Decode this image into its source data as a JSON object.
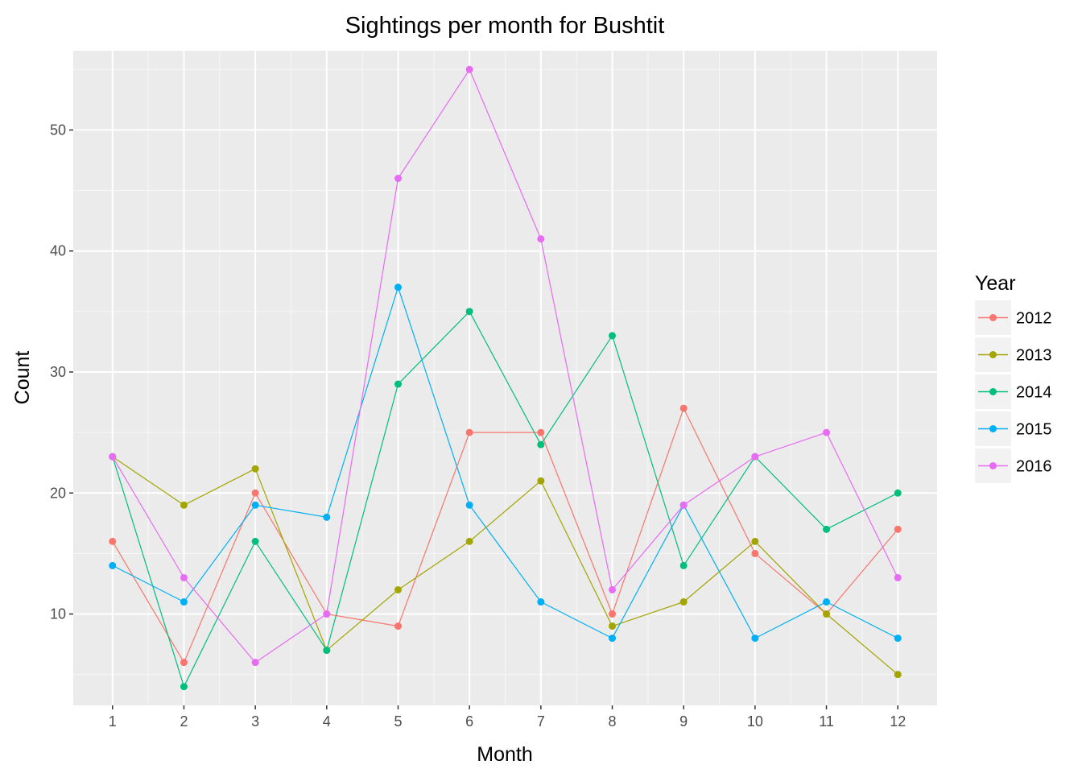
{
  "chart_data": {
    "type": "line",
    "title": "Sightings per month for Bushtit",
    "xlabel": "Month",
    "ylabel": "Count",
    "x": [
      1,
      2,
      3,
      4,
      5,
      6,
      7,
      8,
      9,
      10,
      11,
      12
    ],
    "x_ticks": [
      "1",
      "2",
      "3",
      "4",
      "5",
      "6",
      "7",
      "8",
      "9",
      "10",
      "11",
      "12"
    ],
    "xlim": [
      0.45,
      12.55
    ],
    "y_ticks": [
      10,
      20,
      30,
      40,
      50
    ],
    "ylim": [
      2.45,
      56.55
    ],
    "grid": true,
    "legend": {
      "title": "Year",
      "position": "right"
    },
    "series": [
      {
        "name": "2012",
        "color": "#F8766D",
        "values": [
          16,
          6,
          20,
          10,
          9,
          25,
          25,
          10,
          27,
          15,
          10,
          17
        ]
      },
      {
        "name": "2013",
        "color": "#A3A500",
        "values": [
          23,
          19,
          22,
          7,
          12,
          16,
          21,
          9,
          11,
          16,
          10,
          5
        ]
      },
      {
        "name": "2014",
        "color": "#00BF7D",
        "values": [
          23,
          4,
          16,
          7,
          29,
          35,
          24,
          33,
          14,
          23,
          17,
          20
        ]
      },
      {
        "name": "2015",
        "color": "#00B0F6",
        "values": [
          14,
          11,
          19,
          18,
          37,
          19,
          11,
          8,
          19,
          8,
          11,
          8
        ]
      },
      {
        "name": "2016",
        "color": "#E76BF3",
        "values": [
          23,
          13,
          6,
          10,
          46,
          55,
          41,
          12,
          19,
          23,
          25,
          13
        ]
      }
    ]
  }
}
